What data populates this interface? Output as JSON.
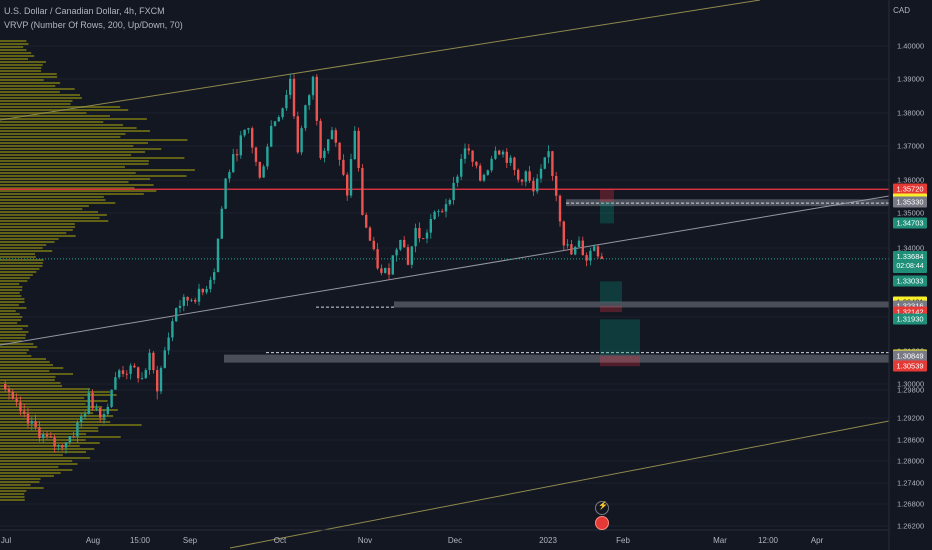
{
  "header": {
    "title": "U.S. Dollar / Canadian Dollar, 4h, FXCM",
    "indicator": "VRVP (Number Of Rows, 200, Up/Down, 70)",
    "currency": "CAD"
  },
  "price_badges": [
    {
      "value": "1.35720",
      "color": "red"
    },
    {
      "value": "1.35417",
      "color": "yellow"
    },
    {
      "value": "1.35330",
      "color": "gray"
    },
    {
      "value": "1.34703",
      "color": "teal"
    },
    {
      "value": "1.33033",
      "color": "teal"
    },
    {
      "value": "1.32421",
      "color": "yellow"
    },
    {
      "value": "1.32316",
      "color": "gray"
    },
    {
      "value": "1.32142",
      "color": "red"
    },
    {
      "value": "1.31930",
      "color": "teal"
    },
    {
      "value": "1.30891",
      "color": "yellow"
    },
    {
      "value": "1.30849",
      "color": "gray"
    },
    {
      "value": "1.30539",
      "color": "red"
    }
  ],
  "current_price": {
    "value": "1.33684",
    "countdown": "02:08:44"
  },
  "colors": {
    "background": "#131722",
    "up": "#26a69a",
    "down": "#ef5350",
    "resistance": "#f23645",
    "zone": "#787b86",
    "channel": "#8e8a4b",
    "profile": "#6b6a16",
    "grid": "#1e222d"
  },
  "chart_data": {
    "type": "candlestick",
    "symbol": "USDCAD",
    "timeframe": "4h",
    "ylim": [
      1.258,
      1.415
    ],
    "y_ticks": [
      "1.40000",
      "1.39000",
      "1.38000",
      "1.37000",
      "1.36000",
      "1.35000",
      "1.34000",
      "1.32000",
      "1.31000",
      "1.30000",
      "1.29800",
      "1.29200",
      "1.28600",
      "1.28000",
      "1.27400",
      "1.26800",
      "1.26200"
    ],
    "x_ticks": [
      "Jul",
      "Aug",
      "15:00",
      "Sep",
      "Oct",
      "Nov",
      "Dec",
      "2023",
      "Feb",
      "Mar",
      "12:00",
      "Apr"
    ],
    "swing_path": [
      [
        0,
        1.3
      ],
      [
        4,
        1.292
      ],
      [
        8,
        1.289
      ],
      [
        11,
        1.286
      ],
      [
        14,
        1.284
      ],
      [
        16,
        1.286
      ],
      [
        18,
        1.288
      ],
      [
        22,
        1.296
      ],
      [
        26,
        1.293
      ],
      [
        30,
        1.304
      ],
      [
        34,
        1.304
      ],
      [
        36,
        1.3015
      ],
      [
        38,
        1.308
      ],
      [
        40,
        1.299
      ],
      [
        42,
        1.31
      ],
      [
        45,
        1.323
      ],
      [
        48,
        1.325
      ],
      [
        52,
        1.327
      ],
      [
        55,
        1.334
      ],
      [
        58,
        1.36
      ],
      [
        62,
        1.372
      ],
      [
        64,
        1.375
      ],
      [
        67,
        1.36
      ],
      [
        70,
        1.376
      ],
      [
        73,
        1.382
      ],
      [
        75,
        1.39
      ],
      [
        77,
        1.369
      ],
      [
        79,
        1.381
      ],
      [
        81,
        1.39
      ],
      [
        83,
        1.368
      ],
      [
        86,
        1.375
      ],
      [
        88,
        1.365
      ],
      [
        90,
        1.356
      ],
      [
        92,
        1.375
      ],
      [
        94,
        1.35
      ],
      [
        97,
        1.338
      ],
      [
        99,
        1.332
      ],
      [
        101,
        1.334
      ],
      [
        104,
        1.344
      ],
      [
        106,
        1.336
      ],
      [
        108,
        1.345
      ],
      [
        110,
        1.342
      ],
      [
        112,
        1.348
      ],
      [
        115,
        1.351
      ],
      [
        118,
        1.358
      ],
      [
        121,
        1.37
      ],
      [
        123,
        1.365
      ],
      [
        125,
        1.36
      ],
      [
        127,
        1.364
      ],
      [
        129,
        1.37
      ],
      [
        131,
        1.368
      ],
      [
        133,
        1.365
      ],
      [
        135,
        1.36
      ],
      [
        137,
        1.362
      ],
      [
        139,
        1.356
      ],
      [
        141,
        1.362
      ],
      [
        143,
        1.368
      ],
      [
        145,
        1.356
      ],
      [
        147,
        1.342
      ],
      [
        149,
        1.338
      ],
      [
        151,
        1.341
      ],
      [
        153,
        1.337
      ],
      [
        155,
        1.341
      ],
      [
        157,
        1.3368
      ]
    ],
    "horizontal_levels": [
      {
        "label": "resistance",
        "price": 1.3572
      },
      {
        "label": "zone-upper",
        "from": 1.3533,
        "to": 1.35417
      },
      {
        "label": "zone-middle",
        "from": 1.32316,
        "to": 1.32421
      },
      {
        "label": "zone-lower",
        "from": 1.30849,
        "to": 1.30891
      }
    ],
    "channel_lines": [
      {
        "p1": [
          0,
          1.382
        ],
        "p2": [
          160,
          1.415
        ]
      },
      {
        "p1": [
          0,
          1.316
        ],
        "p2": [
          180,
          1.353
        ]
      },
      {
        "p1": [
          40,
          1.262
        ],
        "p2": [
          180,
          1.292
        ]
      }
    ]
  }
}
